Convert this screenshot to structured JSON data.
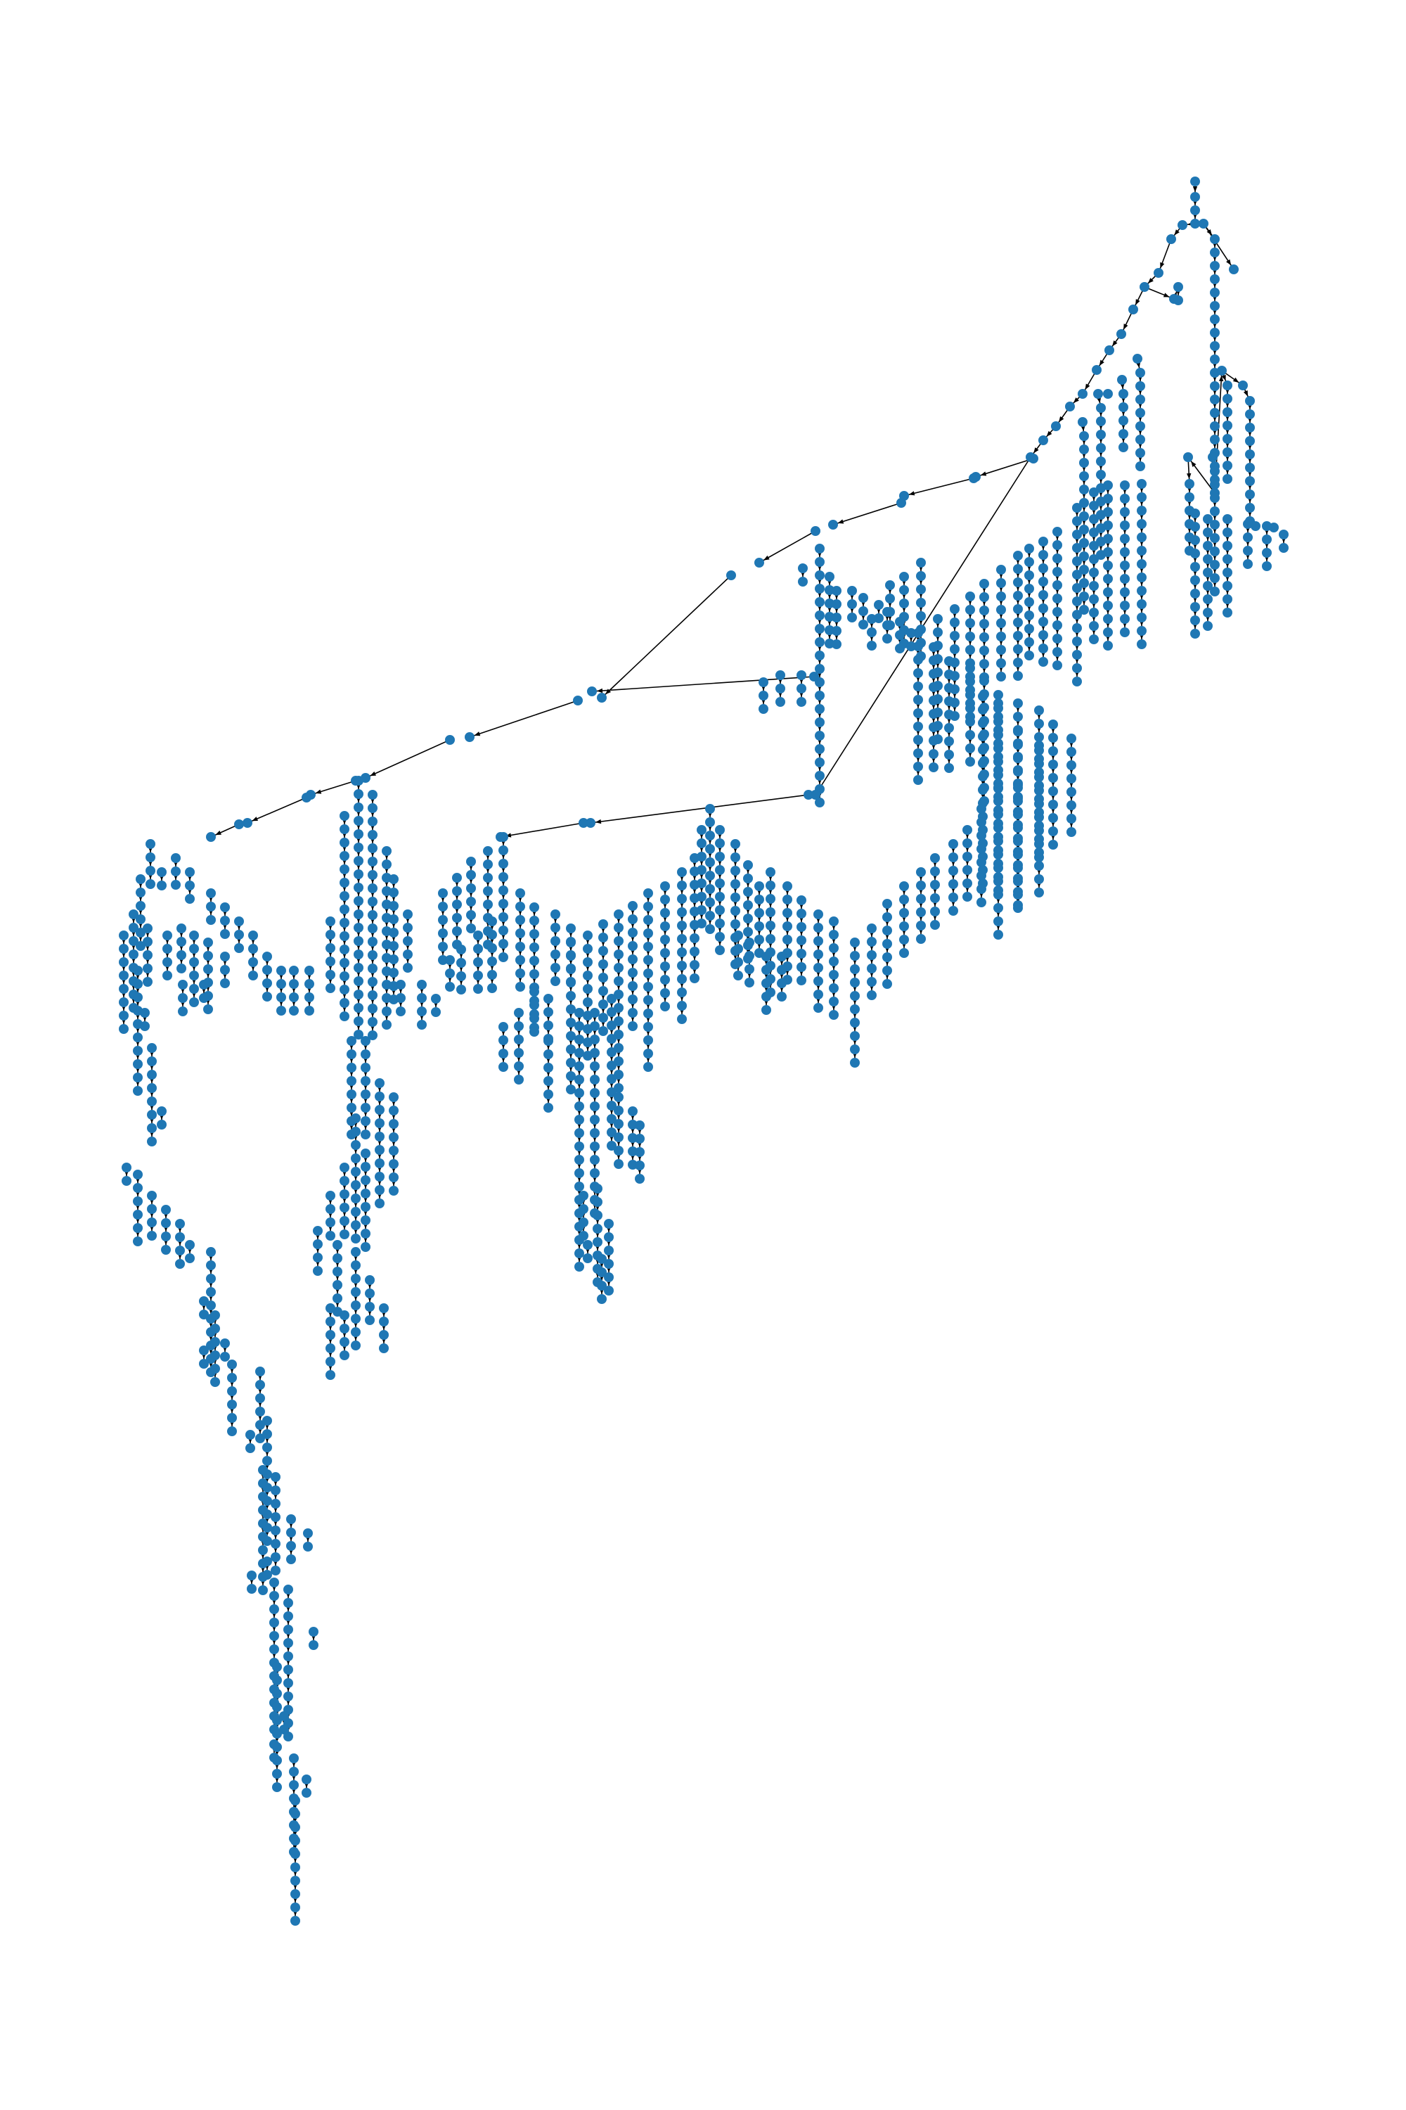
{
  "diagram": {
    "type": "directed-tree",
    "node_color": "#1f77b4",
    "edge_color": "#000000",
    "background": "#ffffff",
    "labels_shown": false,
    "arrowheads": true,
    "root": "top-right"
  }
}
